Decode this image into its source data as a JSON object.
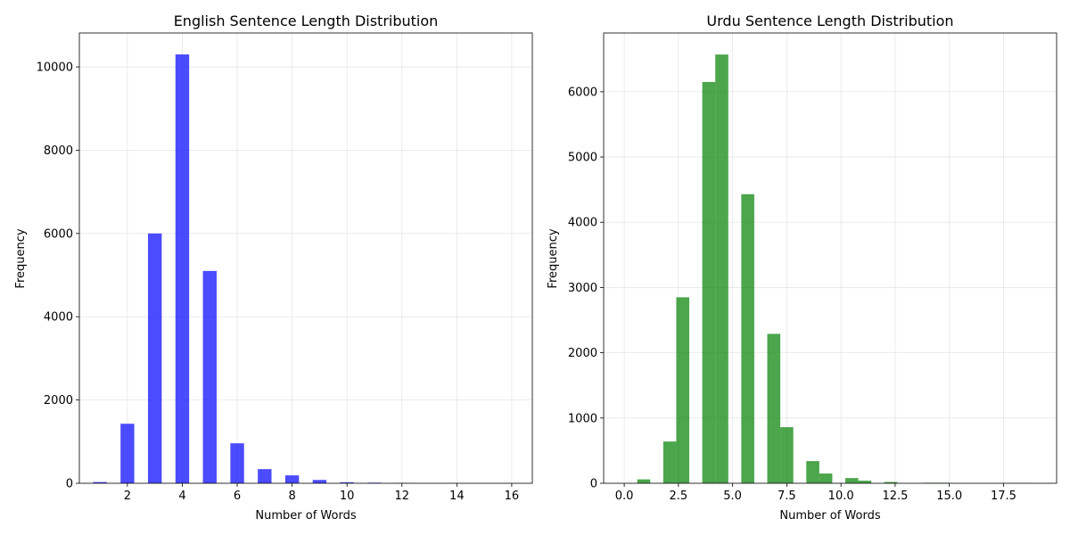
{
  "chart_data": [
    {
      "type": "bar",
      "title": "English Sentence Length Distribution",
      "xlabel": "Number of Words",
      "ylabel": "Frequency",
      "xlim": [
        0.25,
        16.75
      ],
      "ylim": [
        0,
        10815
      ],
      "xticks": [
        2,
        4,
        6,
        8,
        10,
        12,
        14,
        16
      ],
      "yticks": [
        0,
        2000,
        4000,
        6000,
        8000,
        10000
      ],
      "grid": true,
      "color": "#0000ff",
      "alpha": 0.7,
      "bar_width": 0.5,
      "x": [
        1,
        2,
        3,
        4,
        5,
        6,
        7,
        8,
        9,
        10,
        11,
        12
      ],
      "values": [
        30,
        1430,
        6000,
        10300,
        5100,
        960,
        340,
        190,
        80,
        25,
        15,
        8
      ]
    },
    {
      "type": "bar",
      "title": "Urdu Sentence Length Distribution",
      "xlabel": "Number of Words",
      "ylabel": "Frequency",
      "xlim": [
        -0.95,
        19.95
      ],
      "ylim": [
        0,
        6900
      ],
      "xticks": [
        0.0,
        2.5,
        5.0,
        7.5,
        10.0,
        12.5,
        15.0,
        17.5
      ],
      "xtick_labels": [
        "0.0",
        "2.5",
        "5.0",
        "7.5",
        "10.0",
        "12.5",
        "15.0",
        "17.5"
      ],
      "yticks": [
        0,
        1000,
        2000,
        3000,
        4000,
        5000,
        6000
      ],
      "grid": true,
      "color": "#008000",
      "alpha": 0.7,
      "bin_width": 0.6,
      "x": [
        0.6,
        1.2,
        1.8,
        2.4,
        3.0,
        3.6,
        4.2,
        4.8,
        5.4,
        6.0,
        6.6,
        7.2,
        7.8,
        8.4,
        9.0,
        9.6,
        10.2,
        10.8,
        11.4,
        12.0,
        12.6,
        13.2,
        13.8,
        14.4,
        15.0,
        15.6,
        16.2,
        16.8,
        17.4,
        18.0
      ],
      "values": [
        60,
        0,
        640,
        2850,
        0,
        6150,
        6570,
        0,
        4430,
        0,
        2290,
        860,
        0,
        340,
        150,
        0,
        80,
        40,
        0,
        20,
        0,
        0,
        8,
        8,
        0,
        0,
        0,
        0,
        0,
        3
      ]
    }
  ]
}
